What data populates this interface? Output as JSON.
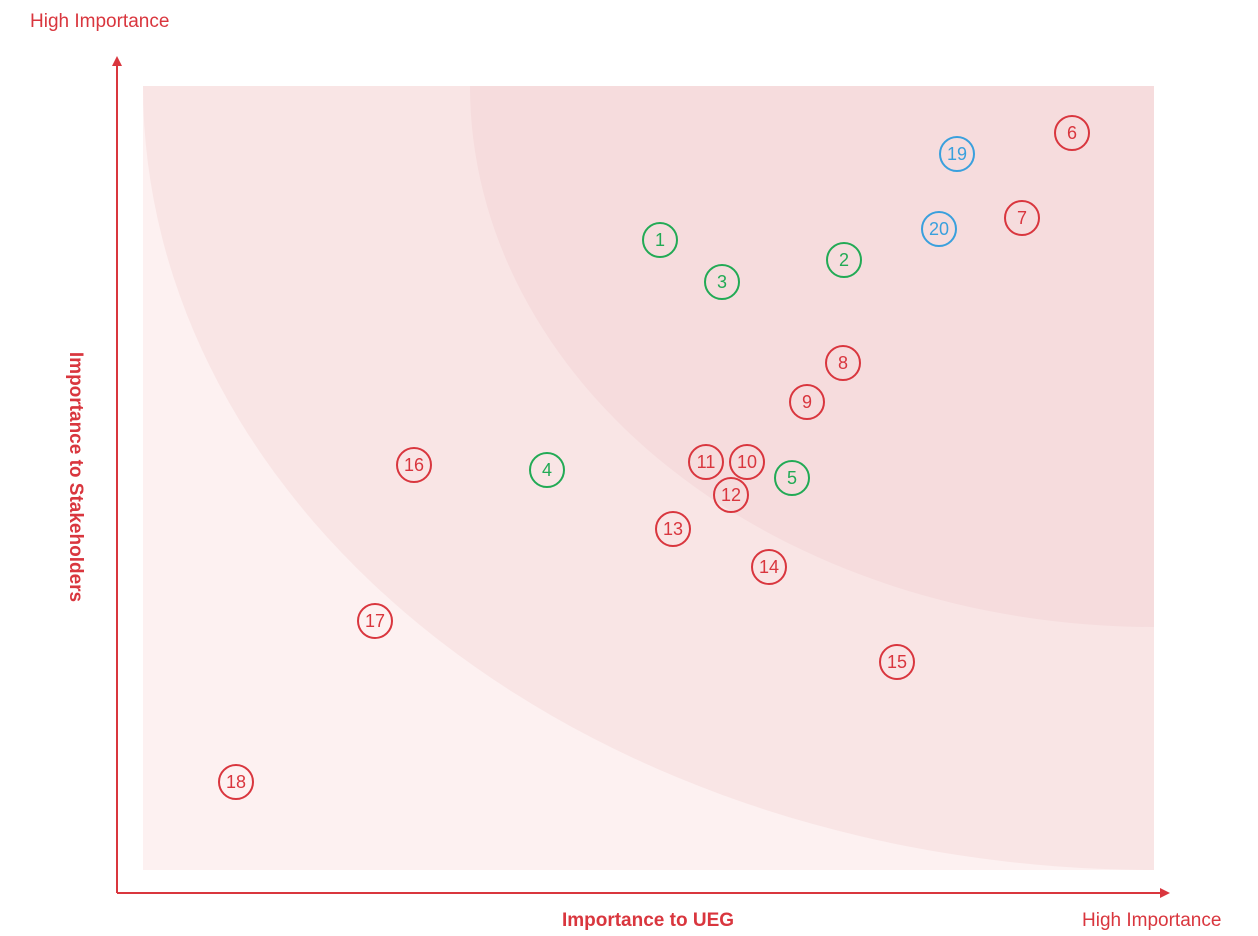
{
  "axes": {
    "y_high": "High Importance",
    "x_high": "High Importance",
    "x_label": "Importance to UEG",
    "y_label": "Importance to Stakeholders"
  },
  "nodes": [
    {
      "label": "1",
      "color": "#22aa55"
    },
    {
      "label": "2",
      "color": "#22aa55"
    },
    {
      "label": "3",
      "color": "#22aa55"
    },
    {
      "label": "4",
      "color": "#22aa55"
    },
    {
      "label": "5",
      "color": "#22aa55"
    },
    {
      "label": "6",
      "color": "#d9363e"
    },
    {
      "label": "7",
      "color": "#d9363e"
    },
    {
      "label": "8",
      "color": "#d9363e"
    },
    {
      "label": "9",
      "color": "#d9363e"
    },
    {
      "label": "10",
      "color": "#d9363e"
    },
    {
      "label": "11",
      "color": "#d9363e"
    },
    {
      "label": "12",
      "color": "#d9363e"
    },
    {
      "label": "13",
      "color": "#d9363e"
    },
    {
      "label": "14",
      "color": "#d9363e"
    },
    {
      "label": "15",
      "color": "#d9363e"
    },
    {
      "label": "16",
      "color": "#d9363e"
    },
    {
      "label": "17",
      "color": "#d9363e"
    },
    {
      "label": "18",
      "color": "#d9363e"
    },
    {
      "label": "19",
      "color": "#3aa0dd"
    },
    {
      "label": "20",
      "color": "#3aa0dd"
    }
  ]
}
